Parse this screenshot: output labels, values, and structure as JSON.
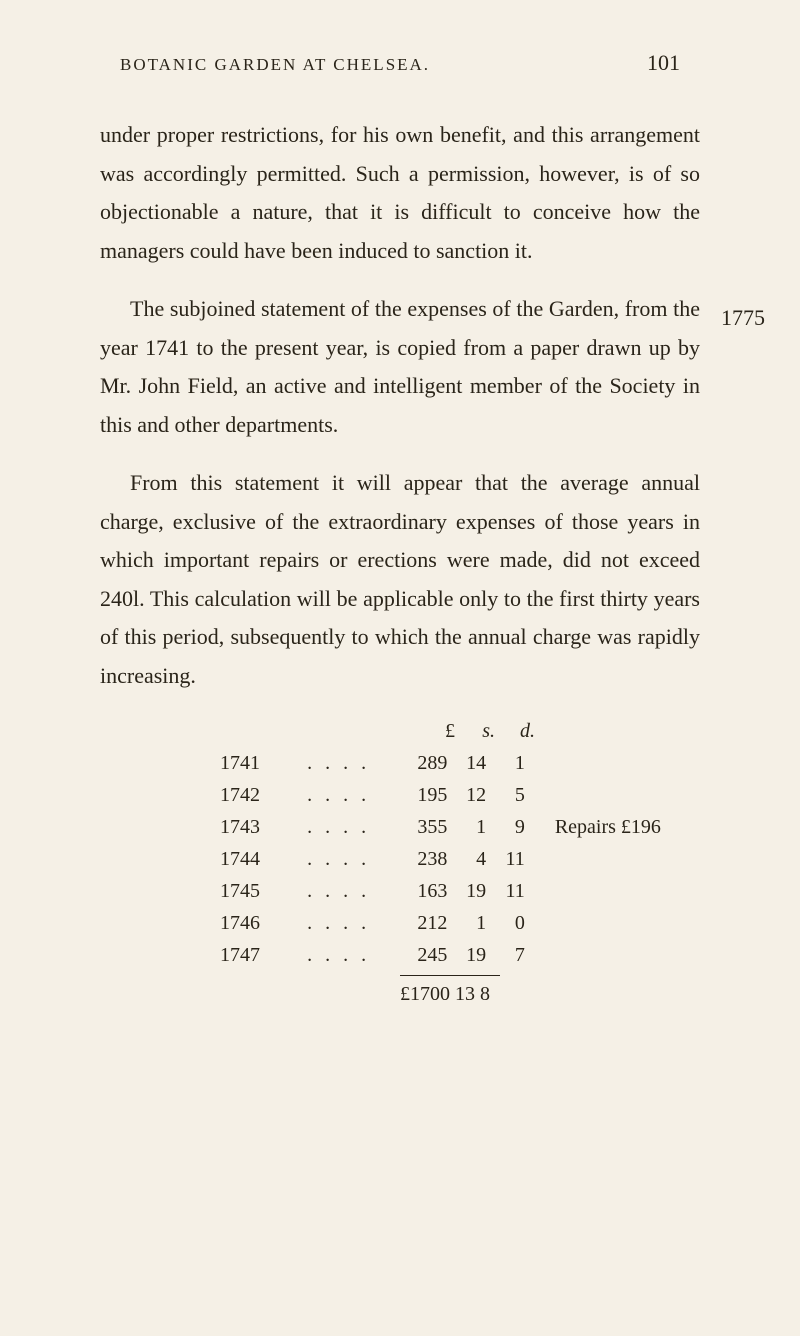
{
  "header": {
    "title": "BOTANIC GARDEN AT CHELSEA.",
    "page_number": "101"
  },
  "margin_year": "1775",
  "paragraphs": {
    "p1": "under proper restrictions, for his own benefit, and this arrangement was accordingly permitted. Such a permission, however, is of so objectionable a nature, that it is difficult to conceive how the managers could have been induced to sanction it.",
    "p2": "The subjoined statement of the expenses of the Garden, from the year 1741 to the present year, is copied from a paper drawn up by Mr. John Field, an active and intelligent member of the Society in this and other departments.",
    "p3": "From this statement it will appear that the average annual charge, exclusive of the extraordinary expenses of those years in which important repairs or erections were made, did not exceed 240l. This calculation will be applicable only to the first thirty years of this period, subsequently to which the annual charge was rapidly increasing."
  },
  "table": {
    "headers": {
      "pounds": "£",
      "shillings": "s.",
      "pence": "d."
    },
    "rows": [
      {
        "year": "1741",
        "dots": ". . . .",
        "pounds": "289",
        "shillings": "14",
        "pence": "1",
        "note": ""
      },
      {
        "year": "1742",
        "dots": ". . . .",
        "pounds": "195",
        "shillings": "12",
        "pence": "5",
        "note": ""
      },
      {
        "year": "1743",
        "dots": ". . . .",
        "pounds": "355",
        "shillings": "1",
        "pence": "9",
        "note": "Repairs £196"
      },
      {
        "year": "1744",
        "dots": ". . . .",
        "pounds": "238",
        "shillings": "4",
        "pence": "11",
        "note": ""
      },
      {
        "year": "1745",
        "dots": ". . . .",
        "pounds": "163",
        "shillings": "19",
        "pence": "11",
        "note": ""
      },
      {
        "year": "1746",
        "dots": ". . . .",
        "pounds": "212",
        "shillings": "1",
        "pence": "0",
        "note": ""
      },
      {
        "year": "1747",
        "dots": ". . . .",
        "pounds": "245",
        "shillings": "19",
        "pence": "7",
        "note": ""
      }
    ],
    "total": "£1700 13   8"
  }
}
